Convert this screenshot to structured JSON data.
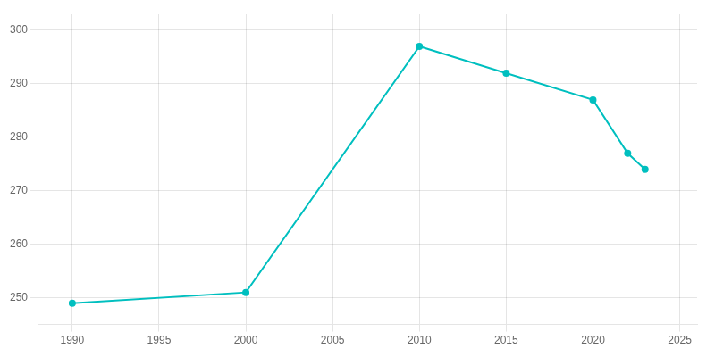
{
  "chart_data": {
    "type": "line",
    "x": [
      1990,
      2000,
      2010,
      2015,
      2020,
      2022,
      2023
    ],
    "values": [
      249,
      251,
      297,
      292,
      287,
      277,
      274
    ],
    "color": "#00bfbf",
    "marker": "circle",
    "xlim": [
      1988,
      2026
    ],
    "ylim": [
      245,
      303
    ],
    "xticks": [
      1990,
      1995,
      2000,
      2005,
      2010,
      2015,
      2020,
      2025
    ],
    "yticks": [
      250,
      260,
      270,
      280,
      290,
      300
    ],
    "grid": true
  }
}
